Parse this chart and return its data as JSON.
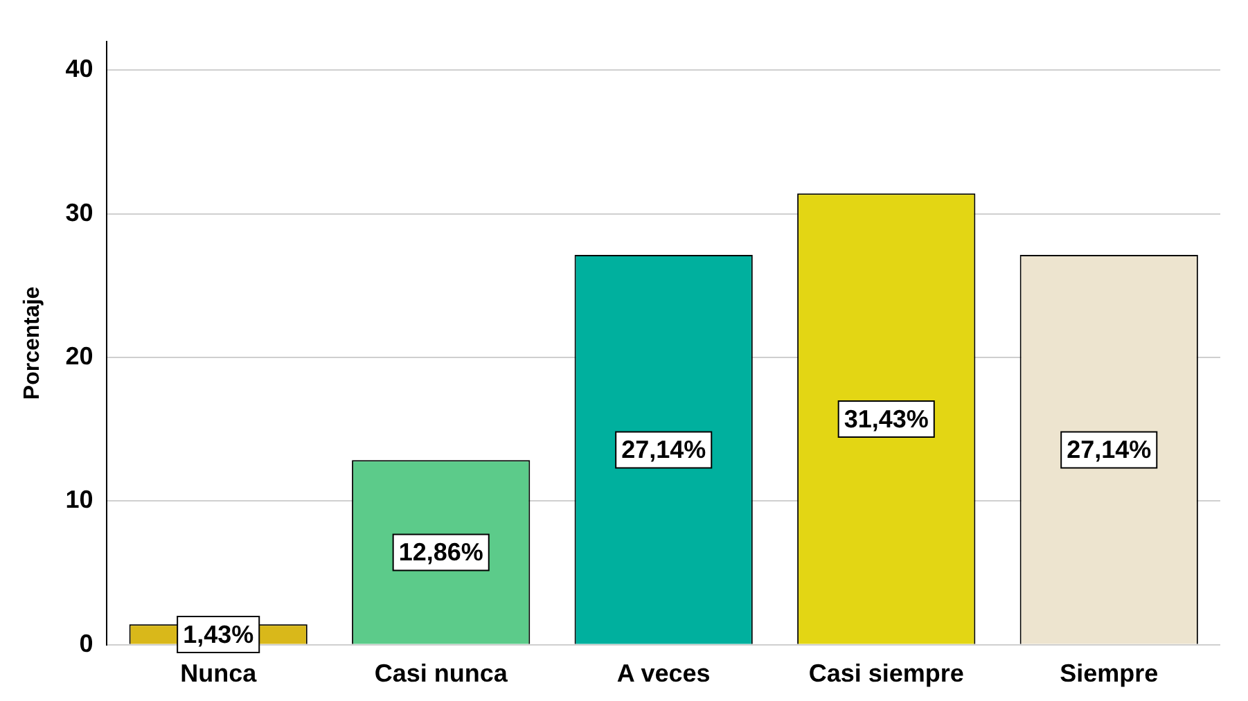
{
  "chart_data": {
    "type": "bar",
    "ylabel": "Porcentaje",
    "categories": [
      "Nunca",
      "Casi nunca",
      "A veces",
      "Casi siempre",
      "Siempre"
    ],
    "values": [
      1.43,
      12.86,
      27.14,
      31.43,
      27.14
    ],
    "colors": [
      "#d9b81a",
      "#5ccb8a",
      "#00b09e",
      "#e3d614",
      "#ede4cf"
    ],
    "value_labels": [
      "1,43%",
      "12,86%",
      "27,14%",
      "31,43%",
      "27,14%"
    ],
    "ylim": [
      0,
      42
    ],
    "yticks": [
      0,
      10,
      20,
      30,
      40
    ],
    "grid": "y",
    "legend": false
  }
}
